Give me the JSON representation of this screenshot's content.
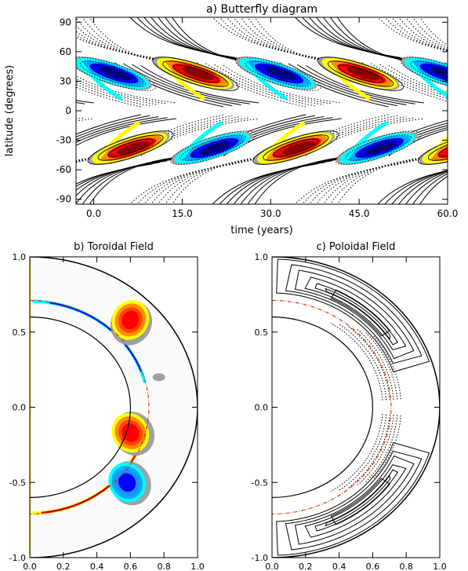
{
  "chart_data": [
    {
      "type": "heatmap",
      "title": "a) Butterfly diagram",
      "xlabel": "time (years)",
      "ylabel": "latitude (degrees)",
      "xlim": [
        -3,
        60
      ],
      "ylim": [
        -95,
        95
      ],
      "xticks": [
        "0.0",
        "15.0",
        "30.0",
        "45.0",
        "60.0"
      ],
      "xtick_values": [
        0,
        15,
        30,
        45,
        60
      ],
      "yticks": [
        "90",
        "60",
        "30",
        "0",
        "-30",
        "-60",
        "-90"
      ],
      "ytick_values": [
        90,
        60,
        30,
        0,
        -30,
        -60,
        -90
      ],
      "colors": {
        "positive_core": "#8b0000",
        "positive": "#ff0000",
        "positive_mid": "#ff8c00",
        "positive_edge": "#ffff00",
        "negative_core": "#000080",
        "negative": "#0000ff",
        "negative_mid": "#00aaff",
        "negative_edge": "#00ffff",
        "gray": "#a0a0a0"
      },
      "blobs": [
        {
          "t": 3,
          "lat": 38,
          "sign": -1
        },
        {
          "t": 17,
          "lat": 38,
          "sign": 1
        },
        {
          "t": 31,
          "lat": 38,
          "sign": -1
        },
        {
          "t": 45,
          "lat": 38,
          "sign": 1
        },
        {
          "t": 59,
          "lat": 38,
          "sign": -1
        },
        {
          "t": 6,
          "lat": -38,
          "sign": 1
        },
        {
          "t": 20,
          "lat": -38,
          "sign": -1
        },
        {
          "t": 34,
          "lat": -38,
          "sign": 1
        },
        {
          "t": 48,
          "lat": -38,
          "sign": -1
        },
        {
          "t": 62,
          "lat": -38,
          "sign": 1
        }
      ]
    },
    {
      "type": "heatmap",
      "title": "b) Toroidal Field",
      "xlim": [
        0,
        1
      ],
      "ylim": [
        -1,
        1
      ],
      "xticks": [
        "0.0",
        "0.2",
        "0.4",
        "0.6",
        "0.8",
        "1.0"
      ],
      "xtick_values": [
        0,
        0.2,
        0.4,
        0.6,
        0.8,
        1.0
      ],
      "yticks": [
        "1.0",
        "0.5",
        "0.0",
        "-0.5",
        "-1.0"
      ],
      "ytick_values": [
        1.0,
        0.5,
        0.0,
        -0.5,
        -1.0
      ],
      "r_outer": 1.0,
      "r_inner": 0.6,
      "r_tachocline": 0.71,
      "blobs": [
        {
          "x": 0.6,
          "y": 0.58,
          "sign": 1
        },
        {
          "x": 0.6,
          "y": -0.17,
          "sign": 1
        },
        {
          "x": 0.58,
          "y": -0.5,
          "sign": -1
        }
      ]
    },
    {
      "type": "contour",
      "title": "c) Poloidal Field",
      "xlim": [
        0,
        1
      ],
      "ylim": [
        -1,
        1
      ],
      "xticks": [
        "0.0",
        "0.2",
        "0.4",
        "0.6",
        "0.8",
        "1.0"
      ],
      "xtick_values": [
        0,
        0.2,
        0.4,
        0.6,
        0.8,
        1.0
      ],
      "yticks": [
        "1.0",
        "0.5",
        "0.0",
        "-0.5",
        "-1.0"
      ],
      "ytick_values": [
        1.0,
        0.5,
        0.0,
        -0.5,
        -1.0
      ],
      "r_outer": 1.0,
      "r_inner": 0.6,
      "r_tachocline": 0.71
    }
  ]
}
